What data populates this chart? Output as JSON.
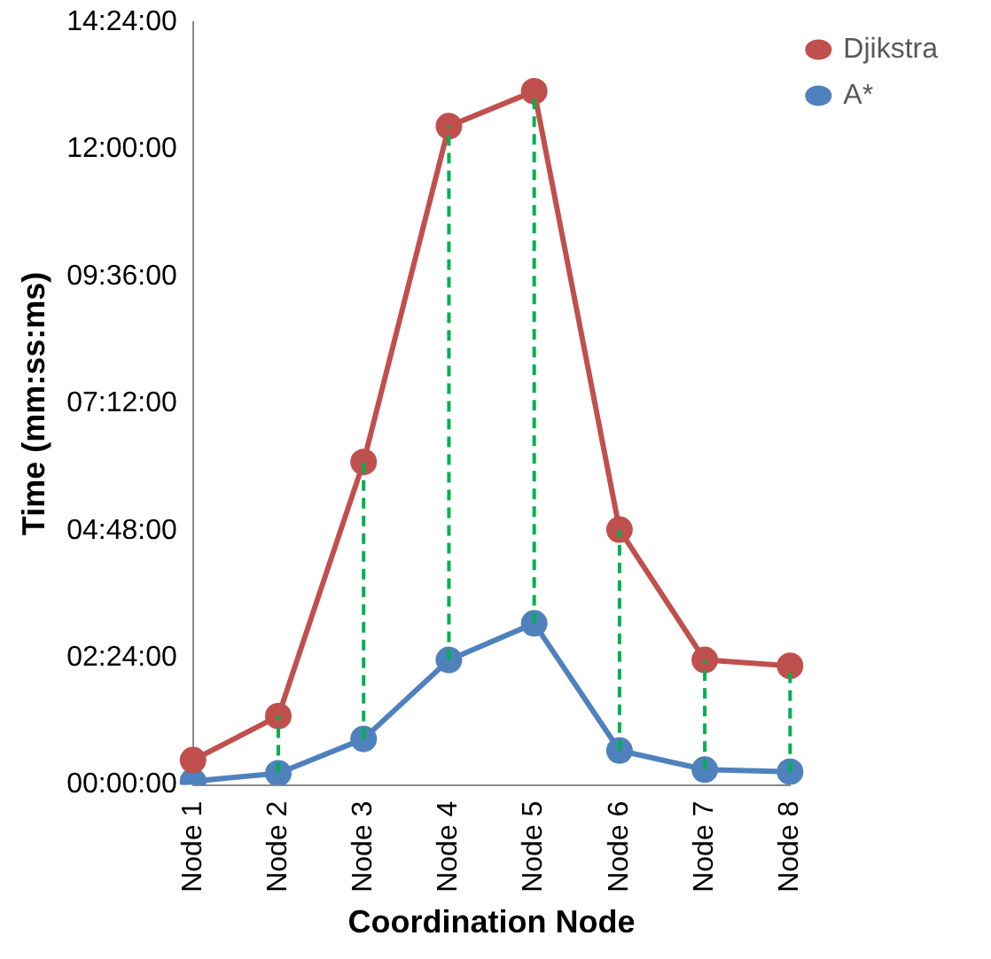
{
  "chart_data": {
    "type": "line",
    "xlabel": "Coordination Node",
    "ylabel": "Time (mm:ss:ms)",
    "categories": [
      "Node 1",
      "Node 2",
      "Node 3",
      "Node 4",
      "Node 5",
      "Node 6",
      "Node 7",
      "Node 8"
    ],
    "series": [
      {
        "name": "Djikstra",
        "color": "#c0504d",
        "values": [
          0.47,
          1.3,
          6.1,
          12.44,
          13.1,
          4.82,
          2.36,
          2.25
        ],
        "errors": [
          null,
          [
            0.22,
            1.3
          ],
          [
            0.87,
            6.1
          ],
          [
            2.36,
            12.44
          ],
          [
            3.05,
            13.1
          ],
          [
            0.65,
            4.82
          ],
          [
            0.29,
            2.36
          ],
          [
            0.25,
            2.25
          ]
        ]
      },
      {
        "name": "A*",
        "color": "#4f81bd",
        "values": [
          0.07,
          0.22,
          0.87,
          2.36,
          3.05,
          0.65,
          0.29,
          0.25
        ]
      }
    ],
    "ylim": [
      0,
      14.4
    ],
    "yticks": [
      {
        "value": 0,
        "label": "00:00:00"
      },
      {
        "value": 2.4,
        "label": "02:24:00"
      },
      {
        "value": 4.8,
        "label": "04:48:00"
      },
      {
        "value": 7.2,
        "label": "07:12:00"
      },
      {
        "value": 9.6,
        "label": "09:36:00"
      },
      {
        "value": 12,
        "label": "12:00:00"
      },
      {
        "value": 14.4,
        "label": "14:24:00"
      }
    ],
    "grid": false,
    "legend": "top right",
    "marker": "circle",
    "line_style": "solid"
  }
}
